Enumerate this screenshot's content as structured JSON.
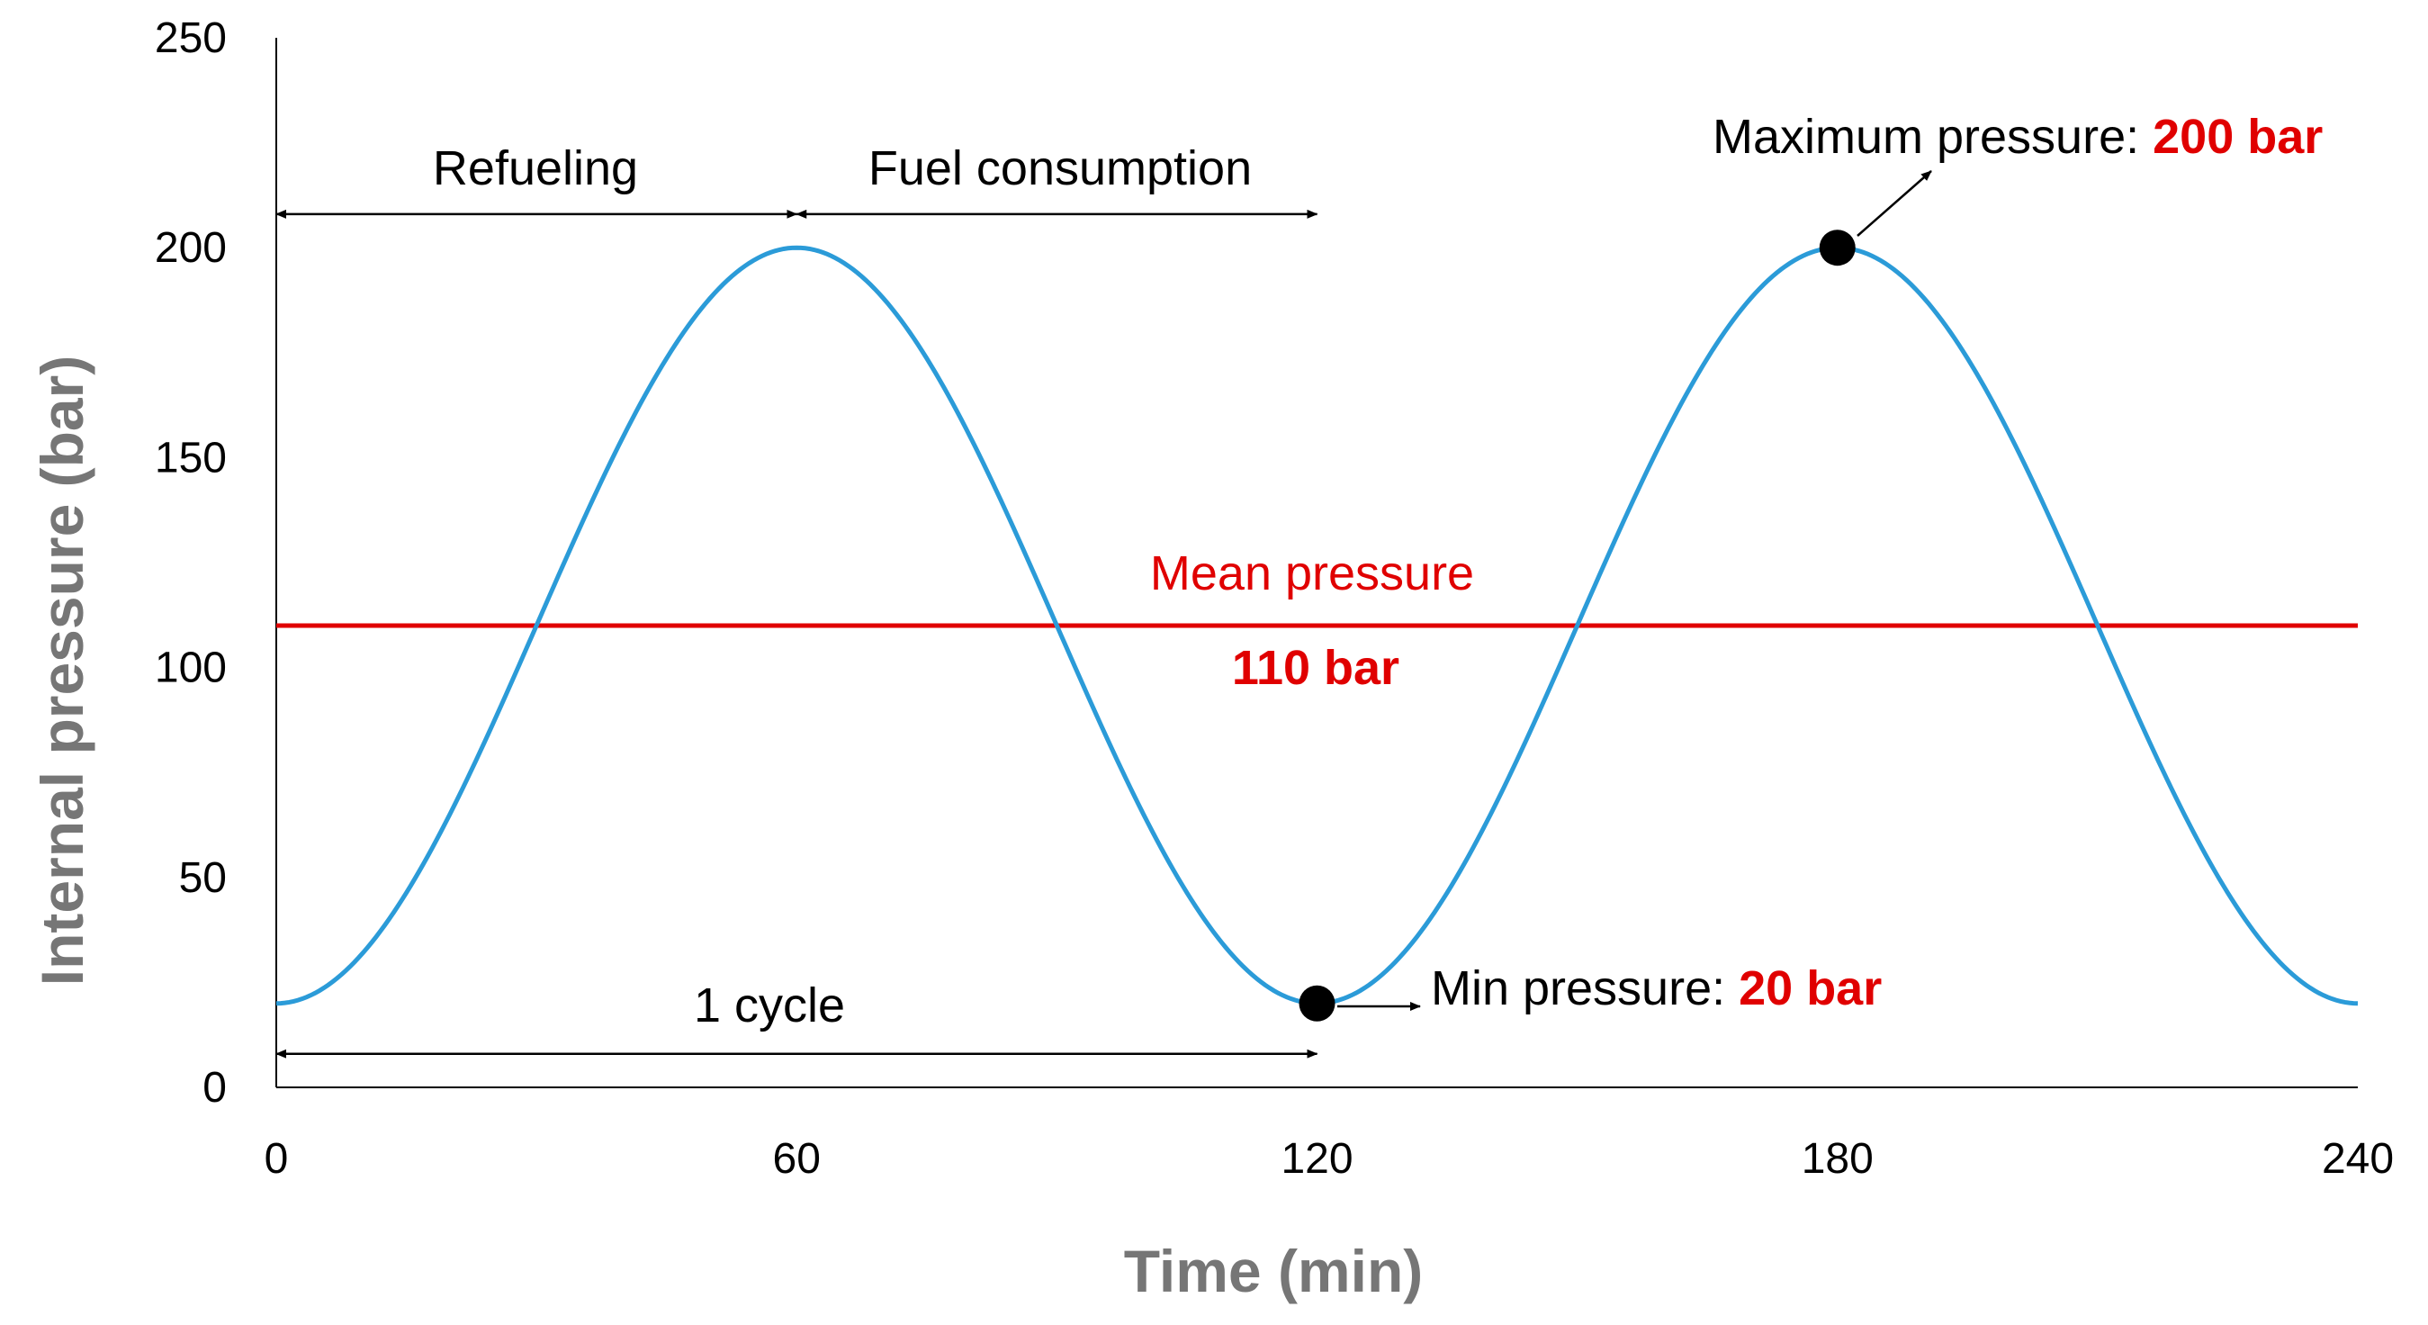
{
  "chart_data": {
    "type": "line",
    "xlabel": "Time (min)",
    "ylabel": "Internal pressure (bar)",
    "xlim": [
      0,
      240
    ],
    "ylim": [
      0,
      250
    ],
    "x_ticks": [
      "0",
      "60",
      "120",
      "180",
      "240"
    ],
    "y_ticks": [
      "0",
      "50",
      "100",
      "150",
      "200",
      "250"
    ],
    "grid": false,
    "series": [
      {
        "name": "Internal pressure",
        "color": "#2b9bd8",
        "function": "cosine",
        "mean": 110,
        "amplitude": 90,
        "period": 120,
        "x": [
          0,
          30,
          60,
          90,
          120,
          150,
          180,
          210,
          240
        ],
        "values": [
          20,
          110,
          200,
          110,
          20,
          110,
          200,
          110,
          20
        ]
      }
    ],
    "mean_line": {
      "y": 110,
      "color": "#e00000",
      "label": "Mean pressure",
      "value_label": "110 bar"
    },
    "annotations": {
      "refueling": {
        "label": "Refueling",
        "x_start": 0,
        "x_end": 60,
        "y": 208
      },
      "fuel_consumption": {
        "label": "Fuel consumption",
        "x_start": 60,
        "x_end": 120,
        "y": 208
      },
      "cycle": {
        "label": "1 cycle",
        "x_start": 0,
        "x_end": 120,
        "y": 8
      },
      "max_point": {
        "x": 180,
        "y": 200,
        "label": "Maximum pressure: ",
        "value": "200 bar"
      },
      "min_point": {
        "x": 120,
        "y": 20,
        "label": "Min pressure: ",
        "value": "20 bar"
      }
    }
  }
}
